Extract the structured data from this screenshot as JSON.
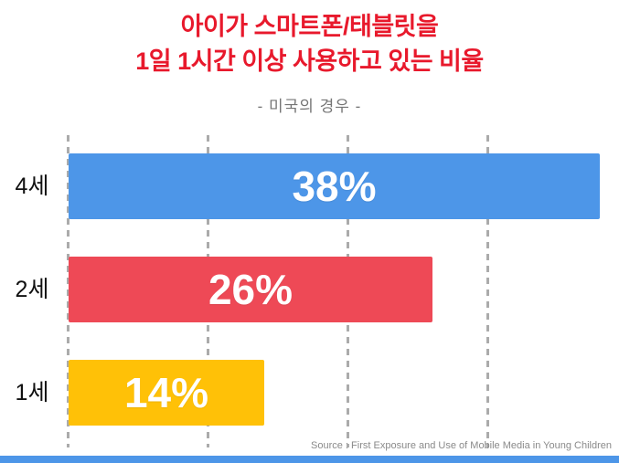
{
  "title": {
    "line1": "아이가 스마트폰/태블릿을",
    "line2": "1일 1시간 이상 사용하고 있는 비율",
    "color": "#e8192c"
  },
  "subtitle": "- 미국의 경우 -",
  "source": "Source : First Exposure and Use of Mobile Media in Young Children",
  "accent_color": "#4d96e8",
  "chart_data": {
    "type": "bar",
    "orientation": "horizontal",
    "title": "아이가 스마트폰/태블릿을 1일 1시간 이상 사용하고 있는 비율",
    "subtitle": "- 미국의 경우 -",
    "categories": [
      "4세",
      "2세",
      "1세"
    ],
    "values": [
      38,
      26,
      14
    ],
    "value_labels": [
      "38%",
      "26%",
      "14%"
    ],
    "bar_colors": [
      "#4d96e8",
      "#ee4956",
      "#ffc107"
    ],
    "xlim": [
      0,
      39
    ],
    "x_gridlines": [
      0,
      10,
      20,
      30
    ],
    "grid": "vertical-dashed",
    "legend": "none"
  }
}
